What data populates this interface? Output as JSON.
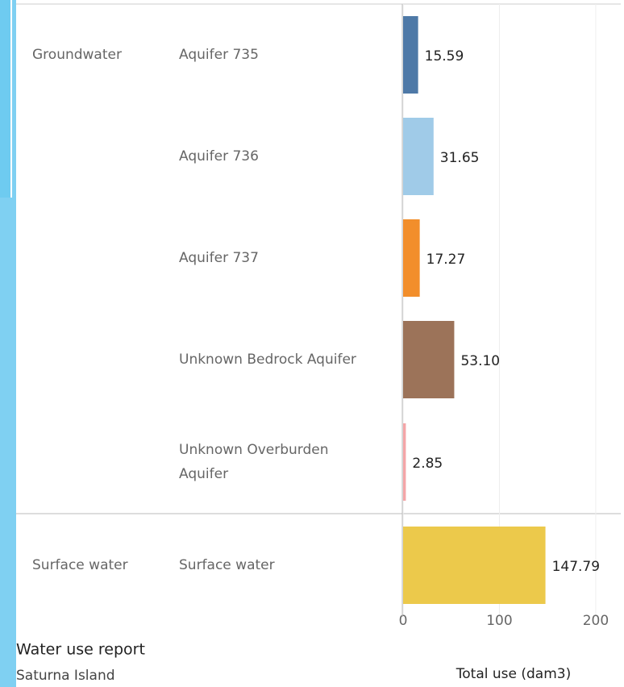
{
  "chart_data": {
    "type": "bar",
    "orientation": "horizontal",
    "title": "Water use report",
    "subtitle": "Saturna Island",
    "xlabel": "Total use (dam3)",
    "group_labels": [
      "Groundwater",
      null,
      null,
      null,
      null,
      "Surface water"
    ],
    "categories": [
      "Aquifer 735",
      "Aquifer 736",
      "Aquifer 737",
      "Unknown Bedrock Aquifer",
      "Unknown Overburden Aquifer",
      "Surface water"
    ],
    "values": [
      15.59,
      31.65,
      17.27,
      53.1,
      2.85,
      147.79
    ],
    "value_labels": [
      "15.59",
      "31.65",
      "17.27",
      "53.10",
      "2.85",
      "147.79"
    ],
    "colors": [
      "#4e79a7",
      "#a0cbe8",
      "#f28e2b",
      "#9c7359",
      "#f4a6a8",
      "#ecc94b"
    ],
    "xlim": [
      0,
      226
    ],
    "xticks": [
      0,
      100,
      200
    ],
    "grid": true
  }
}
